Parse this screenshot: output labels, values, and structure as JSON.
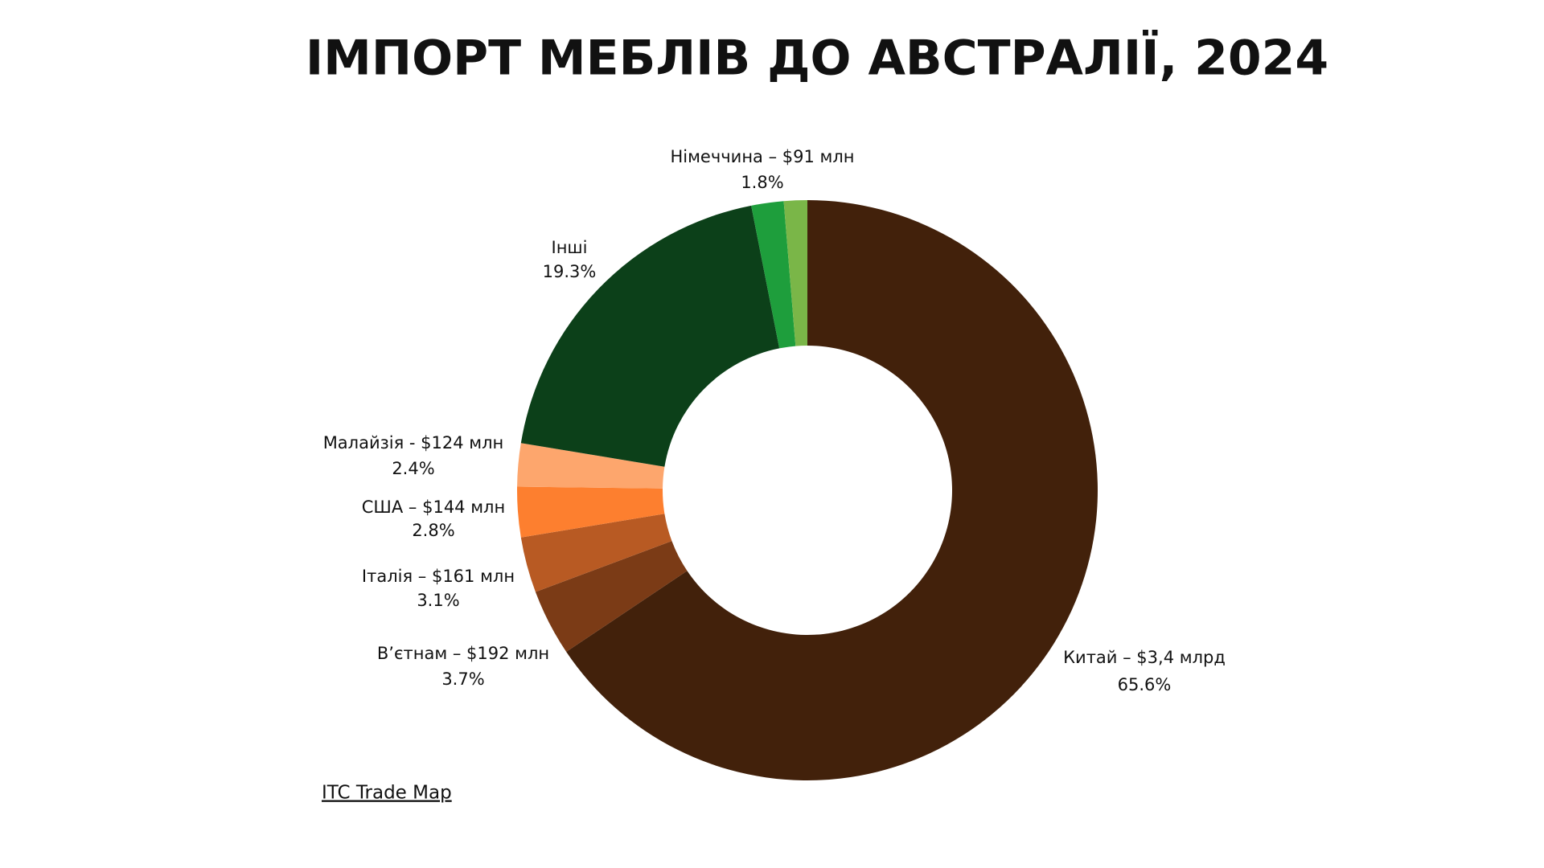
{
  "chart_data": {
    "type": "donut",
    "title": "ІМПОРТ МЕБЛІВ ДО АВСТРАЛІЇ, 2024",
    "categories": [
      "Китай – $3,4 млрд",
      "В’єтнам – $192 млн",
      "Італія – $161 млн",
      "США – $144 млн",
      "Малайзія - $124 млн",
      "Інші",
      "Німеччина – $91 млн",
      null
    ],
    "values": [
      65.6,
      3.7,
      3.1,
      2.8,
      2.4,
      19.3,
      1.8,
      1.3
    ],
    "value_labels": [
      "65.6%",
      "3.7%",
      "3.1%",
      "2.8%",
      "2.4%",
      "19.3%",
      "1.8%",
      null
    ],
    "colors": [
      "#42210b",
      "#7b3b16",
      "#b85a23",
      "#fd7f2f",
      "#fda66d",
      "#0c4019",
      "#1e9e3c",
      "#7ab648"
    ],
    "source": "ITC Trade Map"
  }
}
